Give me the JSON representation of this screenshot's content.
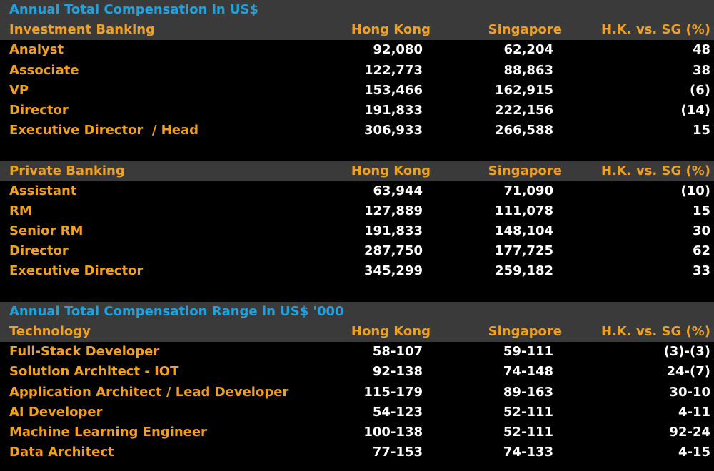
{
  "sections": [
    {
      "title": "Annual Total Compensation in US$",
      "header": {
        "label": "Investment Banking",
        "hk": "Hong Kong",
        "sg": "Singapore",
        "diff": "H.K. vs. SG (%)"
      },
      "rows": [
        {
          "label": "Analyst",
          "hk": "92,080",
          "sg": "62,204",
          "diff": "48"
        },
        {
          "label": "Associate",
          "hk": "122,773",
          "sg": "88,863",
          "diff": "38"
        },
        {
          "label": "VP",
          "hk": "153,466",
          "sg": "162,915",
          "diff": "(6)"
        },
        {
          "label": "Director",
          "hk": "191,833",
          "sg": "222,156",
          "diff": "(14)"
        },
        {
          "label": "Executive Director  / Head",
          "hk": "306,933",
          "sg": "266,588",
          "diff": "15"
        }
      ]
    },
    {
      "title": "",
      "header": {
        "label": "Private Banking",
        "hk": "Hong Kong",
        "sg": "Singapore",
        "diff": "H.K. vs. SG (%)"
      },
      "rows": [
        {
          "label": "Assistant",
          "hk": "63,944",
          "sg": "71,090",
          "diff": "(10)"
        },
        {
          "label": "RM",
          "hk": "127,889",
          "sg": "111,078",
          "diff": "15"
        },
        {
          "label": "Senior RM",
          "hk": "191,833",
          "sg": "148,104",
          "diff": "30"
        },
        {
          "label": "Director",
          "hk": "287,750",
          "sg": "177,725",
          "diff": "62"
        },
        {
          "label": "Executive Director",
          "hk": "345,299",
          "sg": "259,182",
          "diff": "33"
        }
      ]
    },
    {
      "title": "Annual Total Compensation Range in US$ '000",
      "header": {
        "label": "Technology",
        "hk": "Hong Kong",
        "sg": "Singapore",
        "diff": "H.K. vs. SG (%)"
      },
      "rows": [
        {
          "label": "Full-Stack Developer",
          "hk": "58-107",
          "sg": "59-111",
          "diff": "(3)-(3)"
        },
        {
          "label": "Solution Architect - IOT",
          "hk": "92-138",
          "sg": "74-148",
          "diff": "24-(7)"
        },
        {
          "label": "Application Architect / Lead Developer",
          "hk": "115-179",
          "sg": "89-163",
          "diff": "30-10"
        },
        {
          "label": "AI Developer",
          "hk": "54-123",
          "sg": "52-111",
          "diff": "4-11"
        },
        {
          "label": "Machine Learning Engineer",
          "hk": "100-138",
          "sg": "52-111",
          "diff": "92-24"
        },
        {
          "label": "Data Architect",
          "hk": "77-153",
          "sg": "74-133",
          "diff": "4-15"
        }
      ]
    }
  ],
  "colors": {
    "background": "#000000",
    "band": "#3a3a3a",
    "title": "#1fa3e0",
    "label": "#f0a020",
    "value": "#ffffff"
  }
}
